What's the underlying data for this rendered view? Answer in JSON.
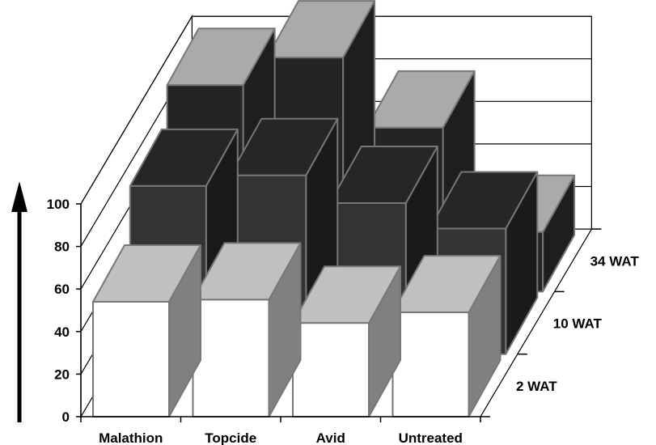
{
  "chart_data": {
    "type": "bar",
    "subtype": "3d-grouped-depth",
    "categories": [
      "Malathion",
      "Topcide",
      "Avid",
      "Untreated"
    ],
    "series": [
      {
        "name": "2 WAT",
        "values": [
          54,
          55,
          44,
          49
        ]
      },
      {
        "name": "10 WAT",
        "values": [
          79,
          84,
          71,
          59
        ]
      },
      {
        "name": "34 WAT",
        "values": [
          97,
          110,
          77,
          28
        ]
      }
    ],
    "ylim": [
      0,
      100
    ],
    "yticks": [
      0,
      20,
      40,
      60,
      80,
      100
    ],
    "ytick_labels": [
      "0",
      "20",
      "40",
      "60",
      "80",
      "100"
    ],
    "ylabel": "",
    "xlabel": "",
    "title": "",
    "y_axis_arrow": true,
    "grid": true,
    "colors": {
      "2 WAT": {
        "front": "#ffffff",
        "top": "#c0c0c0",
        "side": "#808080"
      },
      "10 WAT": {
        "front": "#333333",
        "top": "#262626",
        "side": "#1a1a1a"
      },
      "34 WAT": {
        "front": "#242424",
        "top": "#aaaaaa",
        "side": "#1e1e1e"
      },
      "edge": "#777777",
      "axis": "#000000"
    }
  }
}
